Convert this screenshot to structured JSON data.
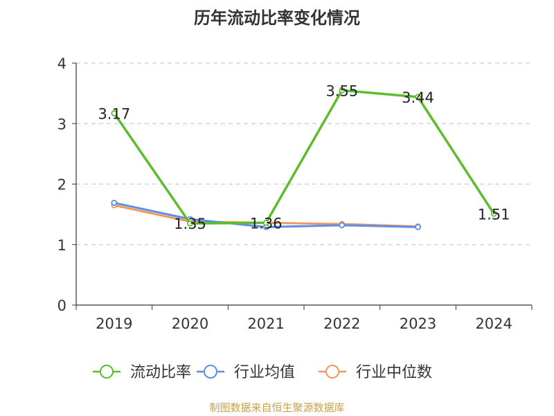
{
  "chart_data": {
    "type": "line",
    "title": "历年流动比率变化情况",
    "categories": [
      "2019",
      "2020",
      "2021",
      "2022",
      "2023",
      "2024"
    ],
    "ylim": [
      0,
      4
    ],
    "yticks": [
      "0",
      "1",
      "2",
      "3",
      "4"
    ],
    "grid": "horizontal dashed",
    "legend": "bottom",
    "series": [
      {
        "name": "流动比率",
        "color": "#5cbd2c",
        "values": [
          3.17,
          1.35,
          1.36,
          3.55,
          3.44,
          1.51
        ],
        "labels": [
          "3.17",
          "1.35",
          "1.36",
          "3.55",
          "3.44",
          "1.51"
        ]
      },
      {
        "name": "行业均值",
        "color": "#5b8ee6",
        "values": [
          1.69,
          1.42,
          1.29,
          1.32,
          1.29,
          null
        ]
      },
      {
        "name": "行业中位数",
        "color": "#f5955e",
        "values": [
          1.65,
          1.38,
          1.36,
          1.34,
          1.3,
          null
        ]
      }
    ],
    "source": "制图数据来自恒生聚源数据库"
  }
}
